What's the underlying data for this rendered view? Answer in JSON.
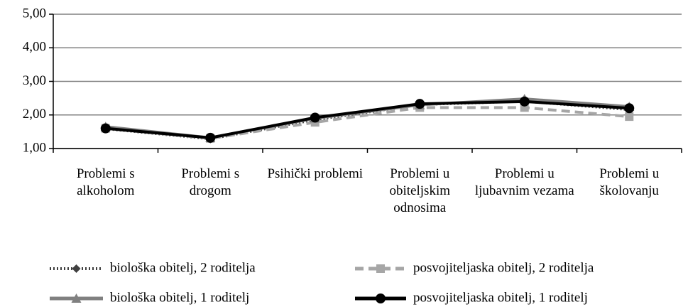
{
  "chart_data": {
    "type": "line",
    "categories": [
      "Problemi s alkoholom",
      "Problemi s drogom",
      "Psihički problemi",
      "Problemi u obiteljskim odnosima",
      "Problemi u ljubavnim vezama",
      "Problemi u školovanju"
    ],
    "series": [
      {
        "name": "biološka obitelj, 2 roditelja",
        "color": "#404040",
        "line_style": "dotted",
        "marker": "diamond",
        "values": [
          1.58,
          1.28,
          1.85,
          2.3,
          2.4,
          2.15
        ]
      },
      {
        "name": "posvojiteljaska obitelj, 2 roditelja",
        "color": "#a6a6a6",
        "line_style": "dashed",
        "marker": "square",
        "values": [
          1.6,
          1.3,
          1.78,
          2.22,
          2.22,
          1.95
        ]
      },
      {
        "name": "biološka obitelj, 1 roditelj",
        "color": "#808080",
        "line_style": "solid",
        "marker": "triangle",
        "values": [
          1.65,
          1.32,
          1.9,
          2.3,
          2.48,
          2.25
        ]
      },
      {
        "name": "posvojiteljaska obitelj, 1 roditelj",
        "color": "#000000",
        "line_style": "solid",
        "marker": "circle",
        "values": [
          1.6,
          1.32,
          1.92,
          2.33,
          2.4,
          2.2
        ]
      }
    ],
    "ylim": [
      1,
      5
    ],
    "yticks": [
      {
        "value": 1,
        "label": "1,00"
      },
      {
        "value": 2,
        "label": "2,00"
      },
      {
        "value": 3,
        "label": "3,00"
      },
      {
        "value": 4,
        "label": "4,00"
      },
      {
        "value": 5,
        "label": "5,00"
      }
    ],
    "grid": true,
    "legend": "bottom"
  }
}
